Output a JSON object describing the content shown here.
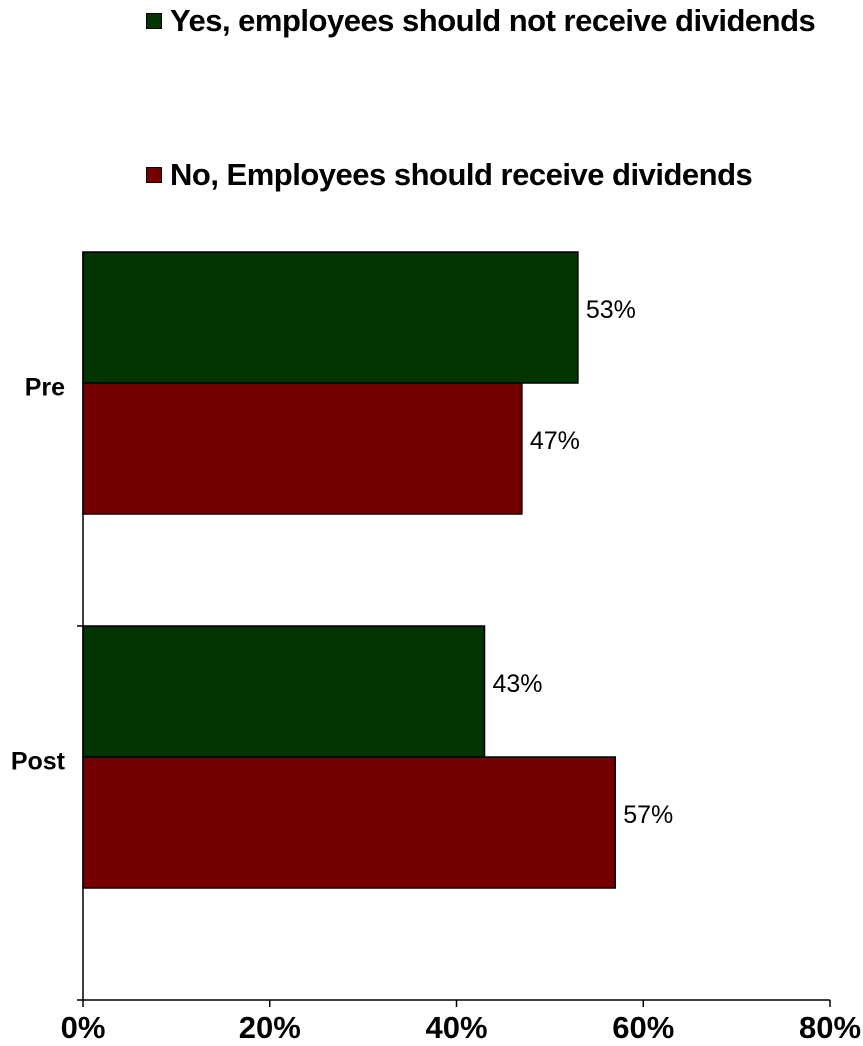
{
  "chart_data": {
    "type": "bar",
    "orientation": "horizontal",
    "categories": [
      "Pre",
      "Post"
    ],
    "series": [
      {
        "name": "Yes, employees should not receive dividends",
        "values": [
          53,
          43
        ],
        "labels": [
          "53%",
          "43%"
        ],
        "color": "#033503"
      },
      {
        "name": "No, Employees should receive dividends",
        "values": [
          47,
          57
        ],
        "labels": [
          "47%",
          "57%"
        ],
        "color": "#750000"
      }
    ],
    "x_ticks": [
      "0%",
      "20%",
      "40%",
      "60%",
      "80%"
    ],
    "xlim": [
      0,
      80
    ],
    "legend_position": "top",
    "grid": false
  }
}
